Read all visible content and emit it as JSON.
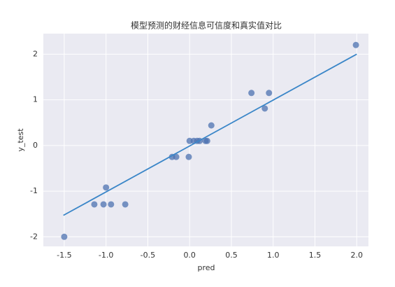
{
  "chart_data": {
    "type": "scatter",
    "title": "模型预测的财经信息可信度和真实值对比",
    "x_label": "pred",
    "y_label": "y_test",
    "series": [
      {
        "color": "#4c72b0",
        "x": [
          -1.5,
          -1.14,
          -1.03,
          -1.0,
          -0.94,
          -0.77,
          -0.21,
          -0.16,
          -0.01,
          0.0,
          0.05,
          0.09,
          0.12,
          0.19,
          0.21,
          0.26,
          0.74,
          0.9,
          0.95,
          1.99
        ],
        "values": [
          -2.0,
          -1.29,
          -1.29,
          -0.92,
          -1.29,
          -1.29,
          -0.25,
          -0.25,
          -0.25,
          0.1,
          0.1,
          0.1,
          0.1,
          0.1,
          0.1,
          0.44,
          1.15,
          0.81,
          1.15,
          2.2
        ]
      }
    ],
    "fit_line": {
      "color": "#3a86c8",
      "x": [
        -1.51,
        2.0
      ],
      "values": [
        -1.53,
        2.0
      ]
    },
    "xlim": [
      -1.75,
      2.14
    ],
    "ylim": [
      -2.21,
      2.45
    ],
    "xticks": [
      -1.5,
      {
        "value": -1.0,
        "label": "-1.0"
      },
      -0.5,
      {
        "value": 0.0,
        "label": "0.0"
      },
      0.5,
      {
        "value": 1.0,
        "label": "1.0"
      },
      1.5,
      {
        "value": 2.0,
        "label": "2.0"
      }
    ],
    "yticks": [
      -2,
      -1,
      0,
      1,
      2
    ],
    "grid": true,
    "background": "#eaeaf2"
  }
}
